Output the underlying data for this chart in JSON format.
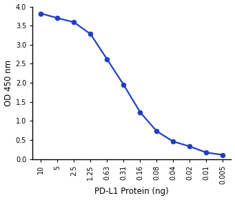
{
  "x_labels": [
    "10",
    "5",
    "2.5",
    "1.25",
    "0.63",
    "0.31",
    "0.16",
    "0.08",
    "0.04",
    "0.02",
    "0.01",
    "0.005"
  ],
  "y_values": [
    3.82,
    3.7,
    3.59,
    3.28,
    2.62,
    1.95,
    1.23,
    0.73,
    0.46,
    0.33,
    0.17,
    0.11
  ],
  "line_color": "#1f3fbf",
  "marker_color": "#1f3fbf",
  "marker_style": "o",
  "marker_size": 5,
  "line_width": 1.6,
  "xlabel": "PD-L1 Protein (ng)",
  "ylabel": "OD 450 nm",
  "ylim": [
    0,
    4.0
  ],
  "yticks": [
    0.0,
    0.5,
    1.0,
    1.5,
    2.0,
    2.5,
    3.0,
    3.5,
    4.0
  ],
  "background_color": "#ffffff",
  "spine_color": "#000000",
  "tick_fontsize": 7,
  "label_fontsize": 8.5
}
